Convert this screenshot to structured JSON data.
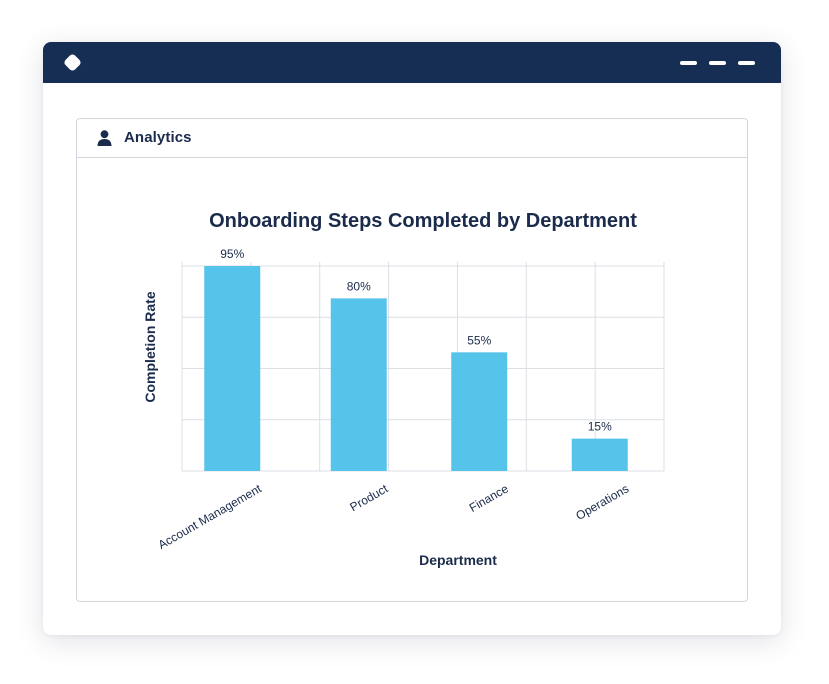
{
  "window": {
    "titlebar_color": "#162d54",
    "app_icon": "diamond-icon",
    "controls": [
      "minimize-dash-icon",
      "maximize-dash-icon",
      "close-dash-icon"
    ]
  },
  "panel": {
    "title": "Analytics",
    "icon": "user-icon"
  },
  "chart_data": {
    "type": "bar",
    "title": "Onboarding Steps Completed by Department",
    "xlabel": "Department",
    "ylabel": "Completion Rate",
    "categories": [
      "Account Management",
      "Product",
      "Finance",
      "Operations"
    ],
    "values": [
      95,
      80,
      55,
      15
    ],
    "value_labels": [
      "95%",
      "80%",
      "55%",
      "15%"
    ],
    "ylim": [
      0,
      100
    ],
    "grid": true,
    "bar_color": "#56c3ea",
    "legend": "none"
  }
}
